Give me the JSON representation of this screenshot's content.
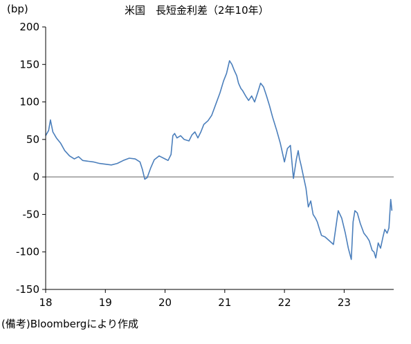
{
  "chart_data": {
    "type": "line",
    "title": "米国　長短金利差（2年10年）",
    "ylabel": "(bp)",
    "source": "(備考)Bloombergにより作成",
    "ylim": [
      -150,
      200
    ],
    "yticks": [
      200,
      150,
      100,
      50,
      0,
      -50,
      -100,
      -150
    ],
    "xlim": [
      18,
      23.83
    ],
    "xticks": [
      18,
      19,
      20,
      21,
      22,
      23
    ],
    "grid": false,
    "zero_line": true,
    "line_color": "#4a7ebb",
    "zero_line_color": "#808080",
    "series": [
      {
        "x": [
          18.0,
          18.05,
          18.08,
          18.12,
          18.18,
          18.25,
          18.32,
          18.4,
          18.48,
          18.55,
          18.62,
          18.7,
          18.8,
          18.9,
          19.0,
          19.1,
          19.2,
          19.3,
          19.4,
          19.5,
          19.58,
          19.62,
          19.66,
          19.7,
          19.76,
          19.82,
          19.9,
          20.0,
          20.05,
          20.1,
          20.13,
          20.16,
          20.2,
          20.26,
          20.32,
          20.4,
          20.45,
          20.5,
          20.55,
          20.6,
          20.65,
          20.72,
          20.78,
          20.85,
          20.92,
          20.98,
          21.03,
          21.08,
          21.12,
          21.16,
          21.2,
          21.23,
          21.27,
          21.3,
          21.35,
          21.4,
          21.45,
          21.5,
          21.55,
          21.6,
          21.65,
          21.7,
          21.75,
          21.8,
          21.87,
          21.93,
          22.0,
          22.05,
          22.1,
          22.15,
          22.2,
          22.23,
          22.25,
          22.28,
          22.32,
          22.36,
          22.4,
          22.44,
          22.48,
          22.52,
          22.55,
          22.58,
          22.62,
          22.68,
          22.75,
          22.82,
          22.9,
          22.96,
          23.02,
          23.07,
          23.12,
          23.15,
          23.18,
          23.22,
          23.27,
          23.33,
          23.38,
          23.42,
          23.47,
          23.5,
          23.53,
          23.57,
          23.61,
          23.65,
          23.68,
          23.72,
          23.75,
          23.78,
          23.8
        ],
        "y": [
          55,
          62,
          76,
          60,
          52,
          45,
          35,
          28,
          24,
          27,
          22,
          21,
          20,
          18,
          17,
          16,
          18,
          22,
          25,
          24,
          20,
          10,
          -3,
          -1,
          12,
          23,
          28,
          24,
          22,
          30,
          55,
          58,
          52,
          55,
          50,
          48,
          56,
          60,
          52,
          60,
          70,
          75,
          82,
          97,
          112,
          128,
          138,
          155,
          150,
          142,
          135,
          125,
          118,
          115,
          108,
          102,
          108,
          100,
          112,
          125,
          120,
          108,
          95,
          80,
          62,
          45,
          20,
          38,
          42,
          -2,
          24,
          35,
          25,
          15,
          0,
          -15,
          -40,
          -32,
          -50,
          -55,
          -60,
          -68,
          -78,
          -80,
          -85,
          -90,
          -45,
          -55,
          -75,
          -95,
          -110,
          -60,
          -45,
          -48,
          -62,
          -75,
          -80,
          -85,
          -98,
          -100,
          -108,
          -88,
          -95,
          -80,
          -70,
          -75,
          -68,
          -30,
          -45
        ]
      }
    ]
  }
}
